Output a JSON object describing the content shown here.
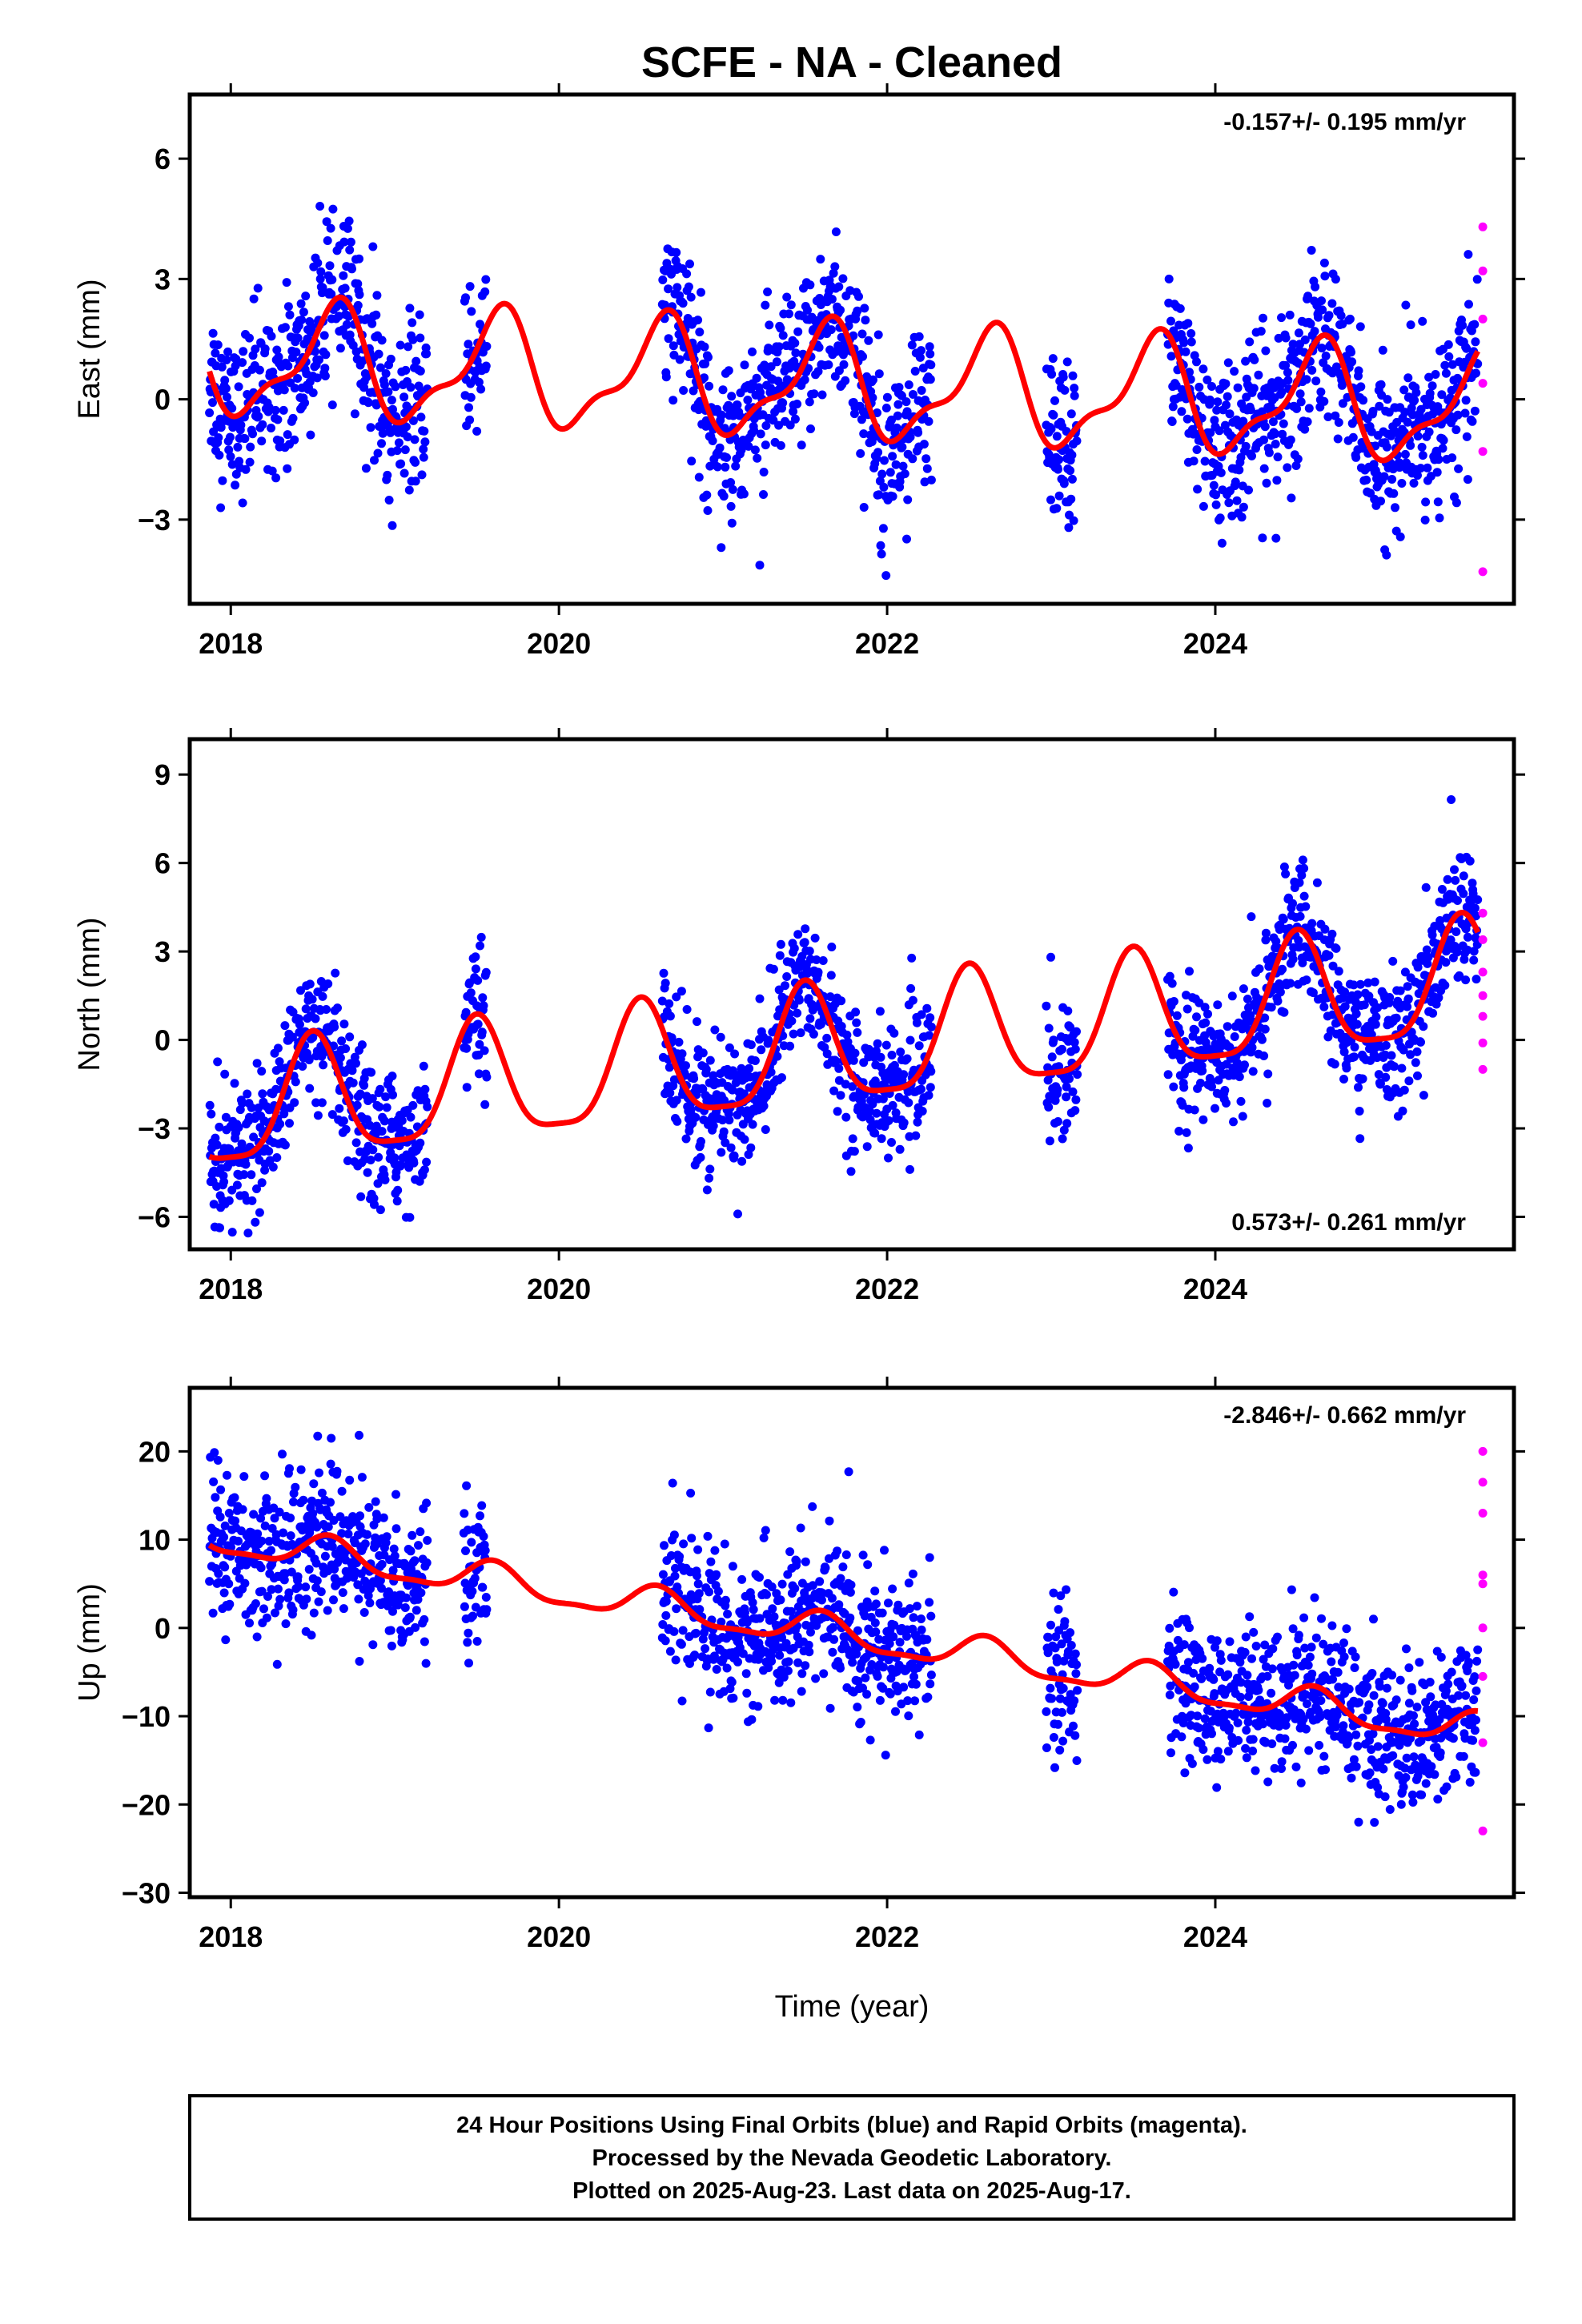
{
  "title": "SCFE  - NA - Cleaned",
  "xlabel": "Time (year)",
  "footer": [
    "24 Hour Positions Using Final Orbits (blue) and Rapid Orbits (magenta).",
    "Processed by the Nevada Geodetic Laboratory.",
    "Plotted on 2025-Aug-23. Last data on 2025-Aug-17."
  ],
  "colors": {
    "final": "#0000ff",
    "rapid": "#ff00ff",
    "model": "#ff0000"
  },
  "chart_data": [
    {
      "type": "scatter",
      "ylabel": "East (mm)",
      "rate": "-0.157+/- 0.195 mm/yr",
      "xlim": [
        2017.75,
        2025.82
      ],
      "ylim": [
        -5.1,
        7.6
      ],
      "yticks": [
        {
          "v": 6,
          "label": "6"
        },
        {
          "v": 3,
          "label": "3"
        },
        {
          "v": 0,
          "label": "0"
        },
        {
          "v": -3,
          "label": "−3"
        }
      ],
      "xticks": [
        {
          "v": 2018,
          "label": "2018"
        },
        {
          "v": 2020,
          "label": "2020"
        },
        {
          "v": 2022,
          "label": "2022"
        },
        {
          "v": 2024,
          "label": "2024"
        }
      ],
      "final_segments": [
        [
          2017.87,
          2019.2
        ],
        [
          2019.42,
          2019.56
        ],
        [
          2020.63,
          2022.27
        ],
        [
          2022.97,
          2023.16
        ],
        [
          2023.71,
          2025.6
        ]
      ],
      "model": {
        "offset": 0.35,
        "trend": -0.157,
        "mid": 2021.8,
        "annual_amp": 1.3,
        "annual_peak": 2021.62,
        "semi_amp": 0.5,
        "semi_peak": 2021.7
      },
      "noise": 1.0,
      "rapid_points": [
        [
          2025.63,
          4.3
        ],
        [
          2025.63,
          3.2
        ],
        [
          2025.63,
          2.0
        ],
        [
          2025.63,
          0.4
        ],
        [
          2025.63,
          -1.3
        ],
        [
          2025.63,
          -4.3
        ]
      ]
    },
    {
      "type": "scatter",
      "ylabel": "North (mm)",
      "rate": "0.573+/- 0.261 mm/yr",
      "xlim": [
        2017.75,
        2025.82
      ],
      "ylim": [
        -7.1,
        10.2
      ],
      "yticks": [
        {
          "v": 9,
          "label": "9"
        },
        {
          "v": 6,
          "label": "6"
        },
        {
          "v": 3,
          "label": "3"
        },
        {
          "v": 0,
          "label": "0"
        },
        {
          "v": -3,
          "label": "−3"
        },
        {
          "v": -6,
          "label": "−6"
        }
      ],
      "xticks": [
        {
          "v": 2018,
          "label": "2018"
        },
        {
          "v": 2020,
          "label": "2020"
        },
        {
          "v": 2022,
          "label": "2022"
        },
        {
          "v": 2024,
          "label": "2024"
        }
      ],
      "final_segments": [
        [
          2017.87,
          2019.2
        ],
        [
          2019.42,
          2019.56
        ],
        [
          2020.63,
          2022.27
        ],
        [
          2022.97,
          2023.16
        ],
        [
          2023.71,
          2025.6
        ]
      ],
      "model": {
        "offset": -0.3,
        "trend": 0.573,
        "mid": 2021.8,
        "annual_amp": 2.0,
        "annual_peak": 2021.5,
        "semi_amp": 0.5,
        "semi_peak": 2021.5
      },
      "noise": 1.1,
      "rapid_points": [
        [
          2025.63,
          4.3
        ],
        [
          2025.63,
          3.4
        ],
        [
          2025.63,
          2.3
        ],
        [
          2025.63,
          1.5
        ],
        [
          2025.63,
          0.8
        ],
        [
          2025.63,
          -0.1
        ],
        [
          2025.63,
          -1.0
        ]
      ]
    },
    {
      "type": "scatter",
      "ylabel": "Up (mm)",
      "rate": "-2.846+/- 0.662 mm/yr",
      "xlim": [
        2017.75,
        2025.82
      ],
      "ylim": [
        -30.5,
        27.2
      ],
      "yticks": [
        {
          "v": 20,
          "label": "20"
        },
        {
          "v": 10,
          "label": "10"
        },
        {
          "v": 0,
          "label": "0"
        },
        {
          "v": -10,
          "label": "−10"
        },
        {
          "v": -20,
          "label": "−20"
        },
        {
          "v": -30,
          "label": "−30"
        }
      ],
      "xticks": [
        {
          "v": 2018,
          "label": "2018"
        },
        {
          "v": 2020,
          "label": "2020"
        },
        {
          "v": 2022,
          "label": "2022"
        },
        {
          "v": 2024,
          "label": "2024"
        }
      ],
      "final_segments": [
        [
          2017.87,
          2019.2
        ],
        [
          2019.42,
          2019.56
        ],
        [
          2020.63,
          2022.27
        ],
        [
          2022.97,
          2023.16
        ],
        [
          2023.71,
          2025.6
        ]
      ],
      "model": {
        "offset": -1.0,
        "trend": -2.846,
        "mid": 2021.8,
        "annual_amp": 1.8,
        "annual_peak": 2021.6,
        "semi_amp": 0.6,
        "semi_peak": 2021.6
      },
      "noise": 4.2,
      "rapid_points": [
        [
          2025.63,
          20.0
        ],
        [
          2025.63,
          16.5
        ],
        [
          2025.63,
          13.0
        ],
        [
          2025.63,
          6.0
        ],
        [
          2025.63,
          5.0
        ],
        [
          2025.63,
          0.0
        ],
        [
          2025.63,
          -5.5
        ],
        [
          2025.63,
          -13.0
        ],
        [
          2025.63,
          -23.0
        ]
      ]
    }
  ]
}
